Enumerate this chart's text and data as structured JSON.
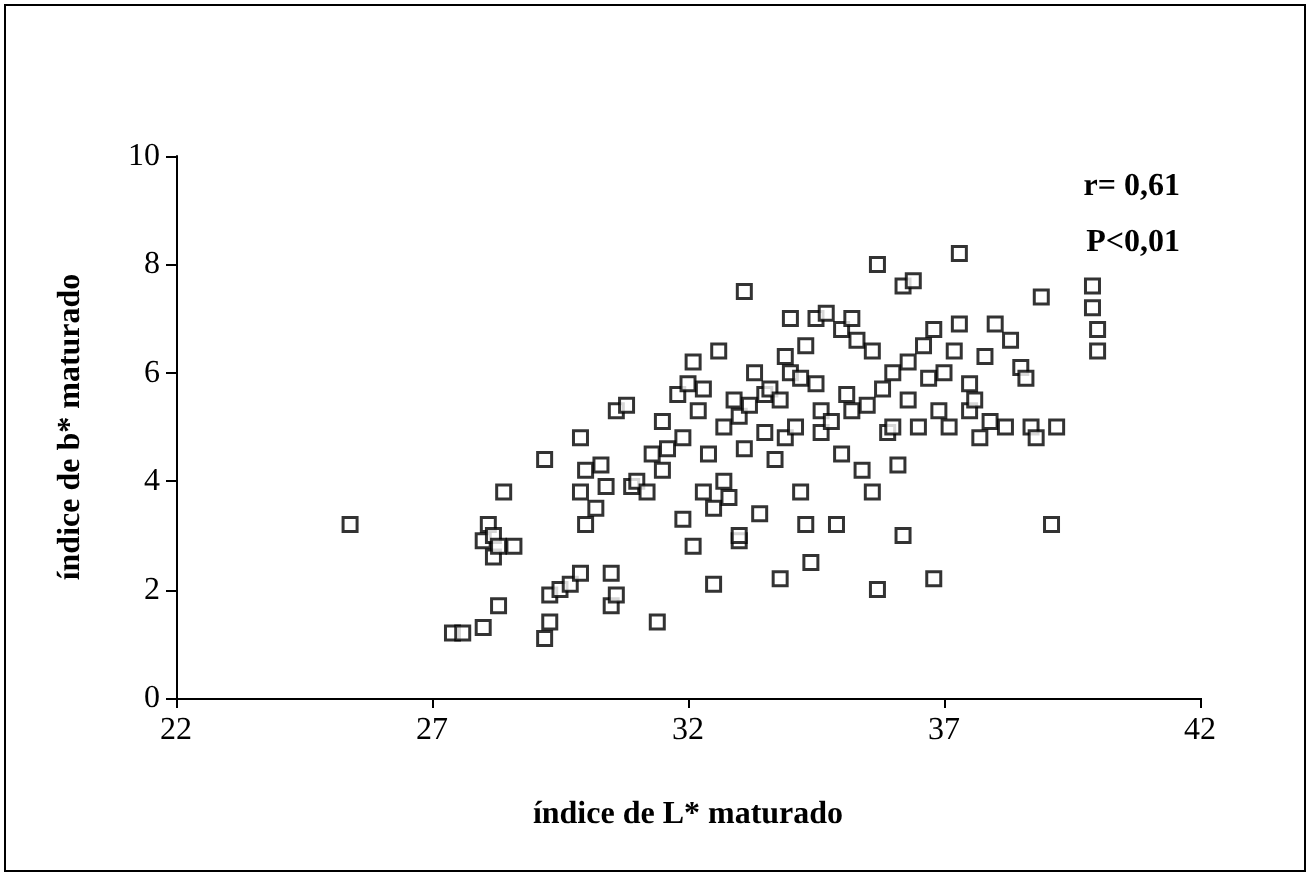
{
  "chart_data": {
    "type": "scatter",
    "xlabel": "índice de L* maturado",
    "ylabel": "índice de b* maturado",
    "annotations": [
      "r= 0,61",
      "P<0,01"
    ],
    "xlim": [
      22,
      42
    ],
    "xticks": [
      22,
      27,
      32,
      37,
      42
    ],
    "ylim": [
      0,
      10
    ],
    "yticks": [
      0,
      2,
      4,
      6,
      8,
      10
    ],
    "grid": false,
    "marker": "square",
    "series": [
      {
        "color": "#000000",
        "x": [
          25.4,
          27.4,
          27.6,
          28.0,
          28.0,
          28.1,
          28.2,
          28.2,
          28.3,
          28.4,
          28.3,
          28.6,
          29.2,
          29.3,
          29.3,
          29.2,
          29.5,
          29.7,
          29.9,
          29.9,
          29.9,
          30.0,
          30.0,
          30.2,
          30.3,
          30.4,
          30.5,
          30.5,
          30.6,
          30.6,
          30.8,
          30.9,
          31.0,
          31.2,
          31.3,
          31.4,
          31.5,
          31.5,
          31.6,
          31.8,
          31.9,
          31.9,
          32.0,
          32.1,
          32.1,
          32.2,
          32.3,
          32.3,
          32.4,
          32.5,
          32.5,
          32.6,
          32.7,
          32.7,
          32.8,
          32.9,
          33.0,
          33.0,
          33.0,
          33.1,
          33.1,
          33.2,
          33.3,
          33.4,
          33.5,
          33.5,
          33.6,
          33.7,
          33.8,
          33.8,
          33.9,
          33.9,
          34.0,
          34.0,
          34.1,
          34.2,
          34.2,
          34.3,
          34.3,
          34.4,
          34.5,
          34.5,
          34.6,
          34.6,
          34.7,
          34.8,
          34.9,
          35.0,
          35.0,
          35.1,
          35.2,
          35.2,
          35.3,
          35.4,
          35.5,
          35.6,
          35.6,
          35.7,
          35.7,
          35.8,
          35.9,
          36.0,
          36.0,
          36.1,
          36.2,
          36.2,
          36.3,
          36.3,
          36.4,
          36.5,
          36.6,
          36.7,
          36.8,
          36.8,
          36.9,
          37.0,
          37.1,
          37.2,
          37.3,
          37.3,
          37.5,
          37.5,
          37.6,
          37.7,
          37.8,
          37.9,
          38.0,
          38.2,
          38.3,
          38.5,
          38.6,
          38.7,
          38.8,
          38.9,
          39.1,
          39.2,
          39.9,
          39.9,
          40.0,
          40.0
        ],
        "values": [
          3.2,
          1.2,
          1.2,
          1.3,
          2.9,
          3.2,
          3.0,
          2.6,
          2.8,
          3.8,
          1.7,
          2.8,
          1.1,
          1.4,
          1.9,
          4.4,
          2.0,
          2.1,
          2.3,
          3.8,
          4.8,
          3.2,
          4.2,
          3.5,
          4.3,
          3.9,
          2.3,
          1.7,
          1.9,
          5.3,
          5.4,
          3.9,
          4.0,
          3.8,
          4.5,
          1.4,
          5.1,
          4.2,
          4.6,
          5.6,
          3.3,
          4.8,
          5.8,
          6.2,
          2.8,
          5.3,
          5.7,
          3.8,
          4.5,
          3.5,
          2.1,
          6.4,
          5.0,
          4.0,
          3.7,
          5.5,
          2.9,
          3.0,
          5.2,
          4.6,
          7.5,
          5.4,
          6.0,
          3.4,
          4.9,
          5.6,
          5.7,
          4.4,
          5.5,
          2.2,
          6.3,
          4.8,
          7.0,
          6.0,
          5.0,
          3.8,
          5.9,
          6.5,
          3.2,
          2.5,
          7.0,
          5.8,
          4.9,
          5.3,
          7.1,
          5.1,
          3.2,
          6.8,
          4.5,
          5.6,
          7.0,
          5.3,
          6.6,
          4.2,
          5.4,
          6.4,
          3.8,
          8.0,
          2.0,
          5.7,
          4.9,
          6.0,
          5.0,
          4.3,
          7.6,
          3.0,
          6.2,
          5.5,
          7.7,
          5.0,
          6.5,
          5.9,
          6.8,
          2.2,
          5.3,
          6.0,
          5.0,
          6.4,
          6.9,
          8.2,
          5.8,
          5.3,
          5.5,
          4.8,
          6.3,
          5.1,
          6.9,
          5.0,
          6.6,
          6.1,
          5.9,
          5.0,
          4.8,
          7.4,
          3.2,
          5.0,
          7.6,
          7.2,
          6.8,
          6.4
        ]
      }
    ]
  }
}
